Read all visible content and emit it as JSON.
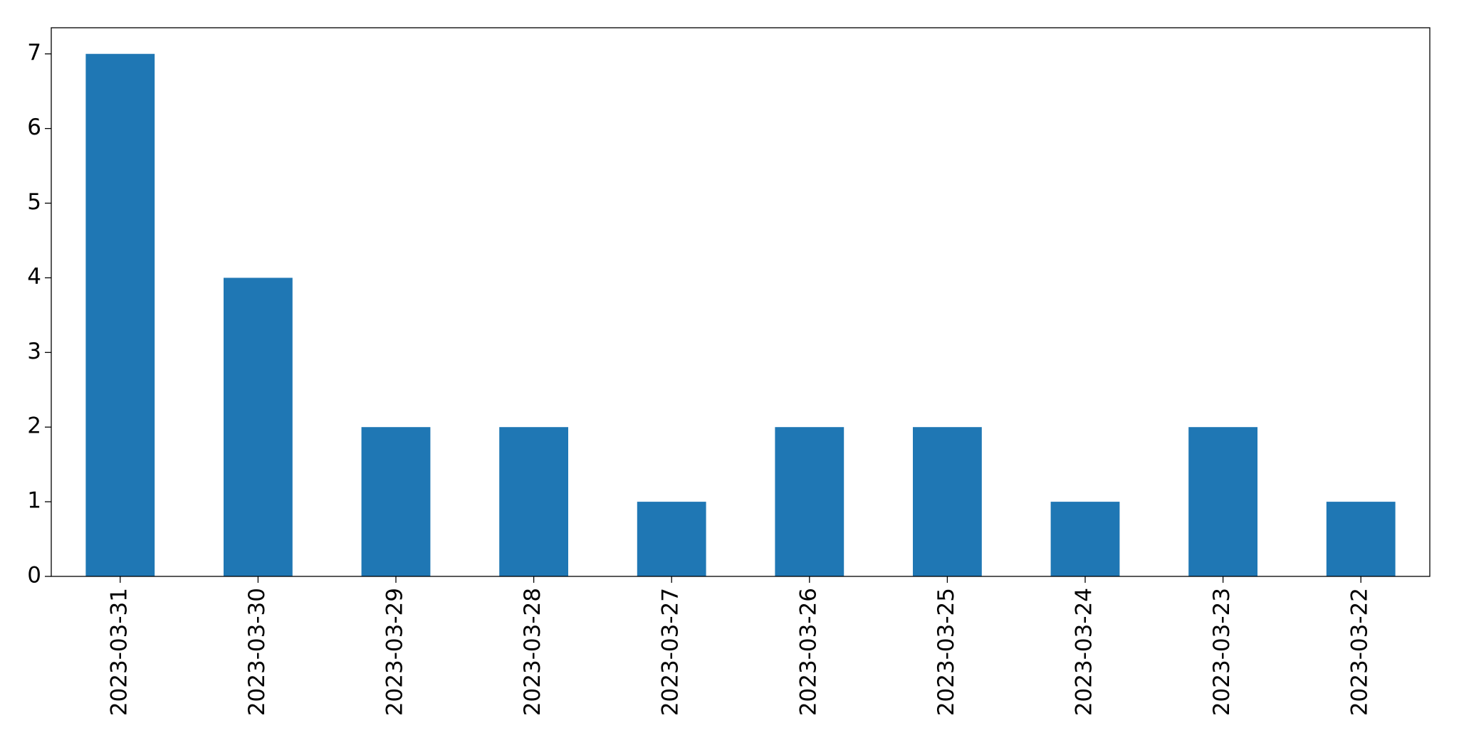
{
  "chart_data": {
    "type": "bar",
    "categories": [
      "2023-03-31",
      "2023-03-30",
      "2023-03-29",
      "2023-03-28",
      "2023-03-27",
      "2023-03-26",
      "2023-03-25",
      "2023-03-24",
      "2023-03-23",
      "2023-03-22"
    ],
    "values": [
      7,
      4,
      2,
      2,
      1,
      2,
      2,
      1,
      2,
      1
    ],
    "color": "#1f77b4",
    "ylim": [
      0,
      7.35
    ],
    "yticks": [
      0,
      1,
      2,
      3,
      4,
      5,
      6,
      7
    ],
    "grid": false
  }
}
